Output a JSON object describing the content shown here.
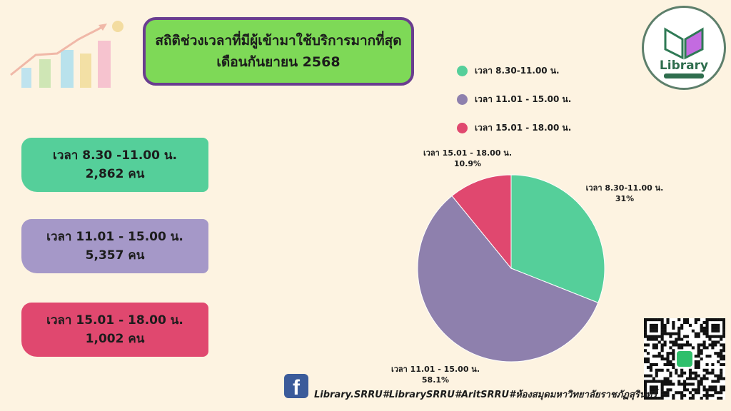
{
  "title": {
    "line1": "สถิติช่วงเวลาที่มีผู้เข้ามาใช้บริการมากที่สุด",
    "line2": "เดือนกันยายน 2568"
  },
  "stats": [
    {
      "label": "เวลา 8.30 -11.00 น.",
      "count": "2,862 คน",
      "color": "#55cf9a"
    },
    {
      "label": "เวลา 11.01 - 15.00 น.",
      "count": "5,357 คน",
      "color": "#a598c8"
    },
    {
      "label": "เวลา 15.01 - 18.00 น.",
      "count": "1,002 คน",
      "color": "#e0486f"
    }
  ],
  "chart_data": {
    "type": "pie",
    "legend_position": "top",
    "slices": [
      {
        "name": "เวลา 8.30-11.00 น.",
        "value": 31,
        "label": "31%",
        "color": "#55cf9a"
      },
      {
        "name": "เวลา 11.01 - 15.00 น.",
        "value": 58.1,
        "label": "58.1%",
        "color": "#8e80ad"
      },
      {
        "name": "เวลา 15.01 - 18.00 น.",
        "value": 10.9,
        "label": "10.9%",
        "color": "#e0486f"
      }
    ]
  },
  "logo": {
    "text": "Library"
  },
  "footer": {
    "text": "Library.SRRU#LibrarySRRU#AritSRRU#ห้องสมุดมหาวิทยาลัยราชภัฏสุรินทร์",
    "icon": "facebook-icon"
  }
}
